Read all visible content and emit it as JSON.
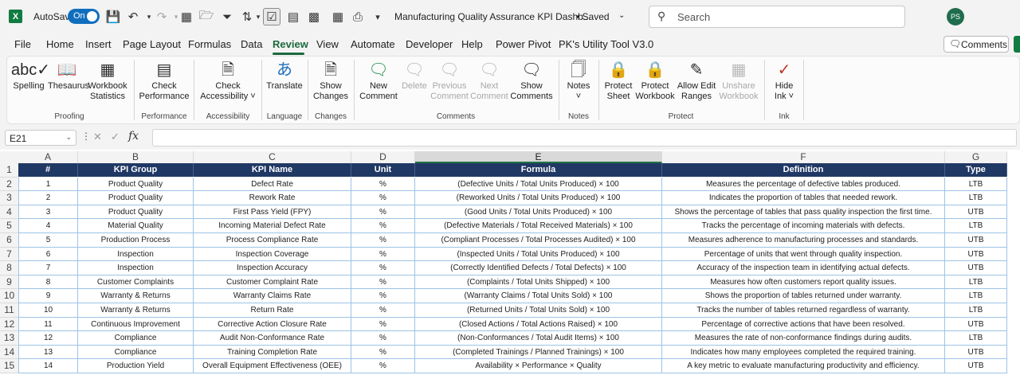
{
  "titlebar": {
    "app_logo": "X",
    "autosave_label": "AutoSave",
    "autosave_state": "On",
    "doc_title": "Manufacturing Quality Assurance KPI Dashb...",
    "saved_status": "• Saved",
    "search_placeholder": "Search",
    "avatar_initials": "PS"
  },
  "menu_tabs": [
    "File",
    "Home",
    "Insert",
    "Page Layout",
    "Formulas",
    "Data",
    "Review",
    "View",
    "Automate",
    "Developer",
    "Help",
    "Power Pivot",
    "PK's Utility Tool V3.0"
  ],
  "active_tab": "Review",
  "comments_button": "Comments",
  "ribbon": {
    "spelling": "Spelling",
    "thesaurus": "Thesaurus",
    "workbook_statistics_1": "Workbook",
    "workbook_statistics_2": "Statistics",
    "group_proofing": "Proofing",
    "check_performance_1": "Check",
    "check_performance_2": "Performance",
    "group_performance": "Performance",
    "check_accessibility_1": "Check",
    "check_accessibility_2": "Accessibility ˅",
    "group_accessibility": "Accessibility",
    "translate": "Translate",
    "group_language": "Language",
    "show_changes_1": "Show",
    "show_changes_2": "Changes",
    "group_changes": "Changes",
    "new_comment_1": "New",
    "new_comment_2": "Comment",
    "delete": "Delete",
    "previous_comment_1": "Previous",
    "previous_comment_2": "Comment",
    "next_comment_1": "Next",
    "next_comment_2": "Comment",
    "show_comments_1": "Show",
    "show_comments_2": "Comments",
    "group_comments": "Comments",
    "notes_1": "Notes",
    "notes_2": "˅",
    "group_notes": "Notes",
    "protect_sheet_1": "Protect",
    "protect_sheet_2": "Sheet",
    "protect_workbook_1": "Protect",
    "protect_workbook_2": "Workbook",
    "allow_edit_ranges_1": "Allow Edit",
    "allow_edit_ranges_2": "Ranges",
    "unshare_workbook_1": "Unshare",
    "unshare_workbook_2": "Workbook",
    "group_protect": "Protect",
    "hide_ink_1": "Hide",
    "hide_ink_2": "Ink ˅",
    "group_ink": "Ink"
  },
  "formula_bar": {
    "name_box": "E21",
    "fx": "fx",
    "value": ""
  },
  "columns": [
    "A",
    "B",
    "C",
    "D",
    "E",
    "F",
    "G"
  ],
  "selected_column": "E",
  "table": {
    "headers": [
      "#",
      "KPI Group",
      "KPI Name",
      "Unit",
      "Formula",
      "Definition",
      "Type"
    ],
    "rows": [
      [
        "1",
        "Product Quality",
        "Defect Rate",
        "%",
        "(Defective Units / Total Units Produced) × 100",
        "Measures the percentage of defective tables produced.",
        "LTB"
      ],
      [
        "2",
        "Product Quality",
        "Rework Rate",
        "%",
        "(Reworked Units / Total Units Produced) × 100",
        "Indicates the proportion of tables that needed rework.",
        "LTB"
      ],
      [
        "3",
        "Product Quality",
        "First Pass Yield (FPY)",
        "%",
        "(Good Units / Total Units Produced) × 100",
        "Shows the percentage of tables that pass quality inspection the first time.",
        "UTB"
      ],
      [
        "4",
        "Material Quality",
        "Incoming Material Defect Rate",
        "%",
        "(Defective Materials / Total Received Materials) × 100",
        "Tracks the percentage of incoming materials with defects.",
        "LTB"
      ],
      [
        "5",
        "Production Process",
        "Process Compliance Rate",
        "%",
        "(Compliant Processes / Total Processes Audited) × 100",
        "Measures adherence to manufacturing processes and standards.",
        "UTB"
      ],
      [
        "6",
        "Inspection",
        "Inspection Coverage",
        "%",
        "(Inspected Units / Total Units Produced) × 100",
        "Percentage of units that went through quality inspection.",
        "UTB"
      ],
      [
        "7",
        "Inspection",
        "Inspection Accuracy",
        "%",
        "(Correctly Identified Defects / Total Defects) × 100",
        "Accuracy of the inspection team in identifying actual defects.",
        "UTB"
      ],
      [
        "8",
        "Customer Complaints",
        "Customer Complaint Rate",
        "%",
        "(Complaints / Total Units Shipped) × 100",
        "Measures how often customers report quality issues.",
        "LTB"
      ],
      [
        "9",
        "Warranty & Returns",
        "Warranty Claims Rate",
        "%",
        "(Warranty Claims / Total Units Sold) × 100",
        "Shows the proportion of tables returned under warranty.",
        "LTB"
      ],
      [
        "10",
        "Warranty & Returns",
        "Return Rate",
        "%",
        "(Returned Units / Total Units Sold) × 100",
        "Tracks the number of tables returned regardless of warranty.",
        "LTB"
      ],
      [
        "11",
        "Continuous Improvement",
        "Corrective Action Closure Rate",
        "%",
        "(Closed Actions / Total Actions Raised) × 100",
        "Percentage of corrective actions that have been resolved.",
        "UTB"
      ],
      [
        "12",
        "Compliance",
        "Audit Non-Conformance Rate",
        "%",
        "(Non-Conformances / Total Audit Items) × 100",
        "Measures the rate of non-conformance findings during audits.",
        "LTB"
      ],
      [
        "13",
        "Compliance",
        "Training Completion Rate",
        "%",
        "(Completed Trainings / Planned Trainings) × 100",
        "Indicates how many employees completed the required training.",
        "UTB"
      ],
      [
        "14",
        "Production Yield",
        "Overall Equipment Effectiveness (OEE)",
        "%",
        "Availability × Performance × Quality",
        "A key metric to evaluate manufacturing productivity and efficiency.",
        "UTB"
      ]
    ]
  },
  "row_numbers": [
    "1",
    "2",
    "3",
    "4",
    "5",
    "6",
    "7",
    "8",
    "9",
    "10",
    "11",
    "12",
    "13",
    "14",
    "15"
  ],
  "colors": {
    "header_fill": "#203864",
    "header_text": "#ffffff",
    "cell_border": "#9dc3e6",
    "accent": "#107c41"
  }
}
